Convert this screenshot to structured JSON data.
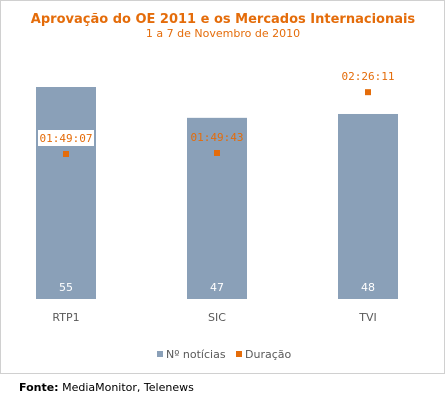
{
  "chart_data": {
    "type": "bar",
    "title": "Aprovação do OE 2011 e os Mercados Internacionais",
    "subtitle": "1 a 7 de Novembro de 2010",
    "categories": [
      "RTP1",
      "SIC",
      "TVI"
    ],
    "series": [
      {
        "name": "Nº notícias",
        "type": "bar",
        "values": [
          55,
          47,
          48
        ],
        "color": "#8aa0b8"
      },
      {
        "name": "Duração",
        "type": "scatter",
        "values": [
          "01:49:07",
          "01:49:43",
          "02:26:11"
        ],
        "seconds": [
          6547,
          6583,
          8771
        ],
        "color": "#e46c0a"
      }
    ],
    "legend_position": "bottom-center",
    "grid": false
  },
  "source": {
    "label": "Fonte:",
    "text": "MediaMonitor, Telenews"
  }
}
